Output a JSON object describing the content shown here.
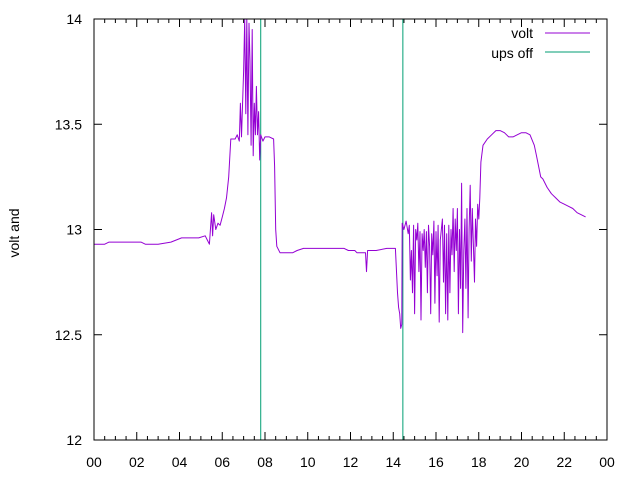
{
  "chart_data": {
    "type": "line",
    "title": "",
    "xlabel": "",
    "ylabel": "volt and",
    "xlim": [
      0,
      24
    ],
    "ylim": [
      12,
      14
    ],
    "x_ticks": [
      "00",
      "02",
      "04",
      "06",
      "08",
      "10",
      "12",
      "14",
      "16",
      "18",
      "20",
      "22",
      "00"
    ],
    "y_ticks": [
      "12",
      "12.5",
      "13",
      "13.5",
      "14"
    ],
    "grid": false,
    "legend_position": "top-right",
    "series": [
      {
        "name": "volt",
        "color": "#9400d3",
        "points": [
          [
            0.0,
            12.93
          ],
          [
            0.5,
            12.93
          ],
          [
            0.7,
            12.94
          ],
          [
            1.5,
            12.94
          ],
          [
            2.2,
            12.94
          ],
          [
            2.4,
            12.93
          ],
          [
            3.0,
            12.93
          ],
          [
            3.6,
            12.94
          ],
          [
            4.1,
            12.96
          ],
          [
            4.9,
            12.96
          ],
          [
            5.2,
            12.97
          ],
          [
            5.3,
            12.95
          ],
          [
            5.4,
            12.93
          ],
          [
            5.5,
            13.08
          ],
          [
            5.55,
            12.97
          ],
          [
            5.6,
            13.07
          ],
          [
            5.7,
            13.0
          ],
          [
            5.8,
            13.03
          ],
          [
            5.9,
            13.02
          ],
          [
            6.0,
            13.06
          ],
          [
            6.1,
            13.1
          ],
          [
            6.2,
            13.15
          ],
          [
            6.3,
            13.25
          ],
          [
            6.4,
            13.43
          ],
          [
            6.6,
            13.43
          ],
          [
            6.7,
            13.45
          ],
          [
            6.8,
            13.42
          ],
          [
            6.85,
            13.6
          ],
          [
            6.9,
            13.44
          ],
          [
            7.0,
            13.75
          ],
          [
            7.05,
            14.0
          ],
          [
            7.1,
            13.55
          ],
          [
            7.15,
            14.0
          ],
          [
            7.2,
            13.45
          ],
          [
            7.25,
            13.98
          ],
          [
            7.3,
            13.8
          ],
          [
            7.35,
            13.4
          ],
          [
            7.4,
            13.95
          ],
          [
            7.45,
            13.35
          ],
          [
            7.5,
            13.6
          ],
          [
            7.55,
            13.45
          ],
          [
            7.6,
            13.68
          ],
          [
            7.65,
            13.45
          ],
          [
            7.7,
            13.56
          ],
          [
            7.75,
            13.33
          ],
          [
            7.8,
            13.45
          ],
          [
            7.9,
            13.42
          ],
          [
            8.0,
            13.44
          ],
          [
            8.2,
            13.44
          ],
          [
            8.4,
            13.43
          ],
          [
            8.45,
            13.3
          ],
          [
            8.5,
            13.0
          ],
          [
            8.55,
            12.92
          ],
          [
            8.7,
            12.89
          ],
          [
            8.9,
            12.89
          ],
          [
            9.3,
            12.89
          ],
          [
            9.5,
            12.9
          ],
          [
            9.8,
            12.91
          ],
          [
            10.3,
            12.91
          ],
          [
            11.0,
            12.91
          ],
          [
            11.7,
            12.91
          ],
          [
            11.9,
            12.9
          ],
          [
            12.2,
            12.9
          ],
          [
            12.3,
            12.89
          ],
          [
            12.5,
            12.89
          ],
          [
            12.7,
            12.89
          ],
          [
            12.75,
            12.8
          ],
          [
            12.8,
            12.9
          ],
          [
            13.2,
            12.9
          ],
          [
            13.7,
            12.91
          ],
          [
            14.1,
            12.91
          ],
          [
            14.2,
            12.7
          ],
          [
            14.25,
            12.63
          ],
          [
            14.3,
            12.6
          ],
          [
            14.35,
            12.53
          ],
          [
            14.4,
            12.55
          ],
          [
            14.42,
            13.03
          ],
          [
            14.5,
            13.0
          ],
          [
            14.6,
            13.04
          ],
          [
            14.7,
            12.98
          ],
          [
            14.75,
            13.02
          ],
          [
            14.8,
            12.76
          ],
          [
            14.85,
            12.9
          ],
          [
            14.9,
            12.7
          ],
          [
            14.95,
            13.02
          ],
          [
            15.0,
            12.6
          ],
          [
            15.05,
            13.0
          ],
          [
            15.1,
            12.95
          ],
          [
            15.15,
            13.03
          ],
          [
            15.2,
            12.8
          ],
          [
            15.25,
            12.99
          ],
          [
            15.3,
            12.57
          ],
          [
            15.35,
            12.98
          ],
          [
            15.4,
            12.9
          ],
          [
            15.45,
            13.0
          ],
          [
            15.5,
            12.82
          ],
          [
            15.55,
            12.99
          ],
          [
            15.6,
            12.7
          ],
          [
            15.65,
            13.02
          ],
          [
            15.7,
            12.92
          ],
          [
            15.75,
            12.6
          ],
          [
            15.8,
            12.98
          ],
          [
            15.85,
            12.88
          ],
          [
            15.9,
            13.04
          ],
          [
            15.95,
            12.65
          ],
          [
            16.0,
            12.99
          ],
          [
            16.05,
            12.78
          ],
          [
            16.1,
            13.02
          ],
          [
            16.15,
            12.56
          ],
          [
            16.2,
            12.95
          ],
          [
            16.3,
            13.05
          ],
          [
            16.35,
            12.75
          ],
          [
            16.4,
            13.02
          ],
          [
            16.45,
            12.6
          ],
          [
            16.5,
            12.98
          ],
          [
            16.55,
            12.57
          ],
          [
            16.6,
            13.02
          ],
          [
            16.65,
            12.7
          ],
          [
            16.7,
            13.0
          ],
          [
            16.75,
            12.88
          ],
          [
            16.8,
            13.1
          ],
          [
            16.85,
            12.8
          ],
          [
            16.9,
            13.05
          ],
          [
            16.95,
            12.9
          ],
          [
            17.0,
            13.1
          ],
          [
            17.05,
            12.6
          ],
          [
            17.1,
            13.0
          ],
          [
            17.15,
            12.72
          ],
          [
            17.2,
            13.22
          ],
          [
            17.25,
            12.51
          ],
          [
            17.3,
            12.9
          ],
          [
            17.35,
            13.05
          ],
          [
            17.4,
            12.72
          ],
          [
            17.45,
            13.1
          ],
          [
            17.5,
            12.58
          ],
          [
            17.55,
            13.0
          ],
          [
            17.6,
            13.21
          ],
          [
            17.65,
            12.85
          ],
          [
            17.7,
            13.1
          ],
          [
            17.8,
            12.75
          ],
          [
            17.85,
            13.05
          ],
          [
            17.9,
            12.92
          ],
          [
            17.95,
            13.12
          ],
          [
            18.0,
            13.05
          ],
          [
            18.05,
            13.15
          ],
          [
            18.1,
            13.32
          ],
          [
            18.2,
            13.4
          ],
          [
            18.4,
            13.43
          ],
          [
            18.6,
            13.45
          ],
          [
            18.8,
            13.47
          ],
          [
            19.0,
            13.47
          ],
          [
            19.2,
            13.46
          ],
          [
            19.4,
            13.44
          ],
          [
            19.6,
            13.44
          ],
          [
            19.8,
            13.45
          ],
          [
            20.0,
            13.46
          ],
          [
            20.2,
            13.46
          ],
          [
            20.4,
            13.45
          ],
          [
            20.6,
            13.4
          ],
          [
            20.7,
            13.35
          ],
          [
            20.8,
            13.3
          ],
          [
            20.9,
            13.25
          ],
          [
            21.0,
            13.24
          ],
          [
            21.2,
            13.2
          ],
          [
            21.4,
            13.17
          ],
          [
            21.6,
            13.15
          ],
          [
            21.8,
            13.13
          ],
          [
            22.0,
            13.12
          ],
          [
            22.2,
            13.11
          ],
          [
            22.4,
            13.1
          ],
          [
            22.6,
            13.08
          ],
          [
            22.8,
            13.07
          ],
          [
            23.0,
            13.06
          ]
        ]
      },
      {
        "name": "ups off",
        "color": "#009e73",
        "events_x": [
          7.8,
          14.45
        ]
      }
    ]
  }
}
